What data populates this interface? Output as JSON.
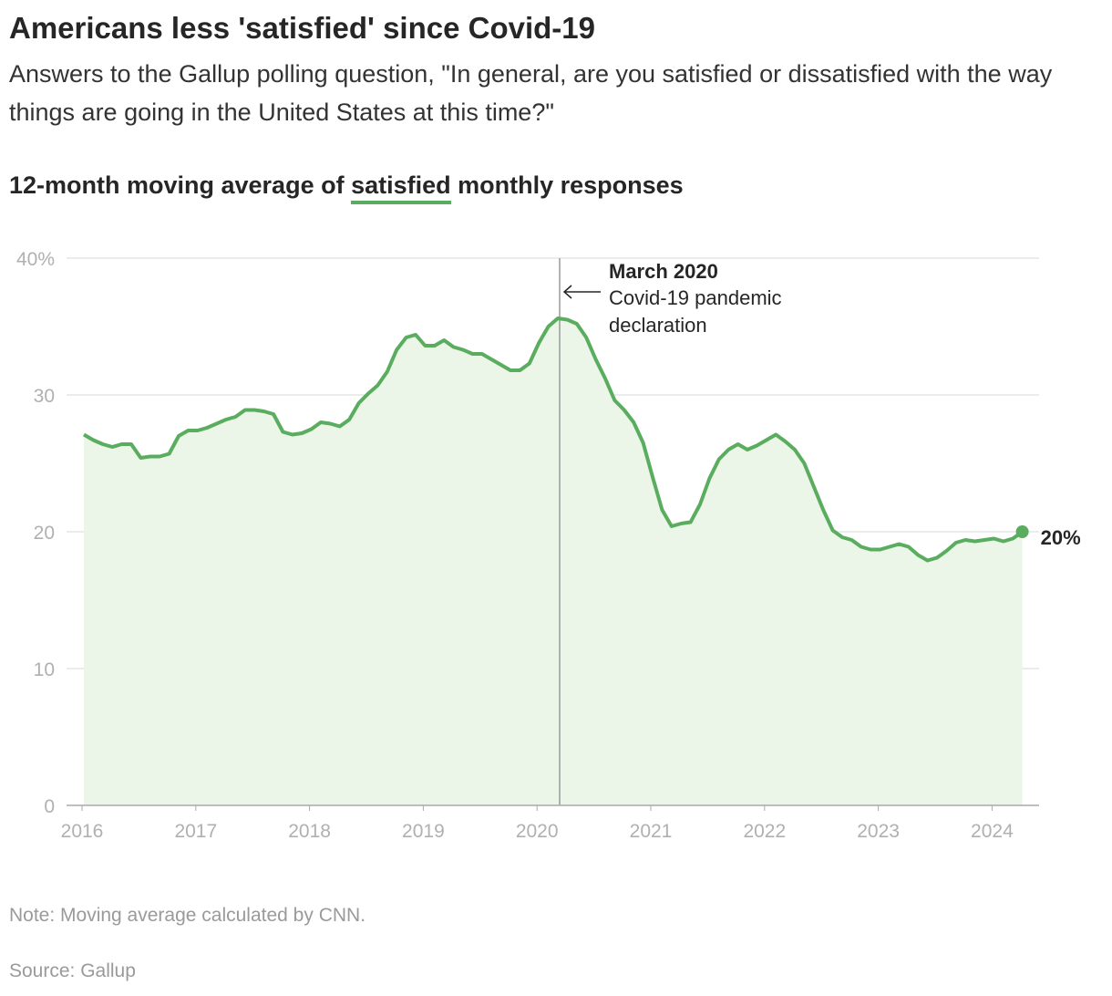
{
  "title": "Americans less 'satisfied' since Covid-19",
  "subtitle": "Answers to the Gallup polling question, \"In general, are you satisfied or dissatisfied with the way things are going in the United States at this time?\"",
  "chart_title": {
    "before": "12-month moving average of ",
    "highlight": "satisfied",
    "after": " monthly responses"
  },
  "note": "Note: Moving average calculated by CNN.",
  "source": "Source: Gallup",
  "colors": {
    "line": "#5aad5e",
    "fill": "#ebf5e8",
    "grid": "#e6e6e6"
  },
  "chart_data": {
    "type": "area",
    "x_start": "2016-01",
    "frequency": "monthly",
    "ylim": [
      0,
      40
    ],
    "y_ticks": [
      "0",
      "10",
      "20",
      "30",
      "40%"
    ],
    "x_ticks": [
      "2016",
      "2017",
      "2018",
      "2019",
      "2020",
      "2021",
      "2022",
      "2023",
      "2024"
    ],
    "grid": true,
    "values": [
      27.1,
      26.7,
      26.4,
      26.2,
      26.4,
      26.4,
      25.4,
      25.5,
      25.5,
      25.7,
      27.0,
      27.4,
      27.4,
      27.6,
      27.9,
      28.2,
      28.4,
      28.9,
      28.9,
      28.8,
      28.6,
      27.3,
      27.1,
      27.2,
      27.5,
      28.0,
      27.9,
      27.7,
      28.2,
      29.4,
      30.1,
      30.7,
      31.7,
      33.3,
      34.2,
      34.4,
      33.6,
      33.6,
      34.0,
      33.5,
      33.3,
      33.0,
      33.0,
      32.6,
      32.2,
      31.8,
      31.8,
      32.3,
      33.8,
      35.0,
      35.6,
      35.5,
      35.2,
      34.2,
      32.6,
      31.2,
      29.6,
      28.9,
      28.0,
      26.5,
      24.0,
      21.6,
      20.4,
      20.6,
      20.7,
      22.0,
      23.9,
      25.3,
      26.0,
      26.4,
      26.0,
      26.3,
      26.7,
      27.1,
      26.6,
      26.0,
      25.0,
      23.3,
      21.6,
      20.1,
      19.6,
      19.4,
      18.9,
      18.7,
      18.7,
      18.9,
      19.1,
      18.9,
      18.3,
      17.9,
      18.1,
      18.6,
      19.2,
      19.4,
      19.3,
      19.4,
      19.5,
      19.3,
      19.5,
      20.0
    ],
    "end_label": "20%",
    "annotation": {
      "date": "2020-03",
      "title": "March 2020",
      "text_line1": "Covid-19 pandemic",
      "text_line2": "declaration"
    }
  }
}
